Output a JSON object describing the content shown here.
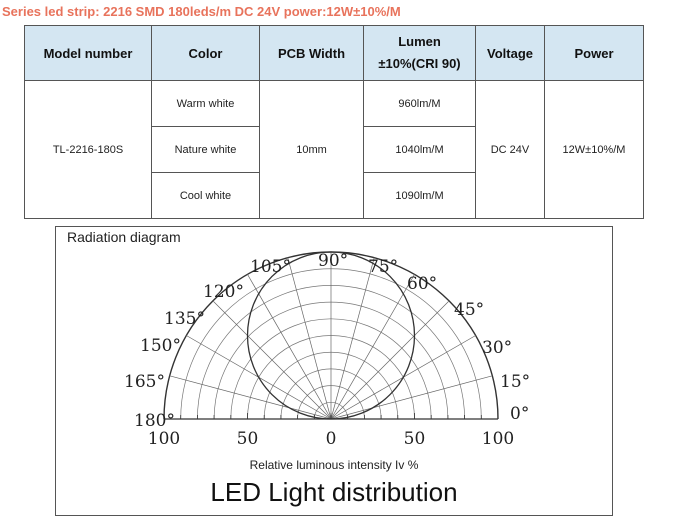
{
  "series_title": "Series led strip: 2216 SMD 180leds/m DC 24V power:12W±10%/M",
  "colors": {
    "title": "#e8735c",
    "header_bg": "#d4e6f2",
    "border": "#555555"
  },
  "table": {
    "headers": {
      "model": "Model number",
      "color": "Color",
      "pcb": "PCB Width",
      "lumen_line1": "Lumen",
      "lumen_line2": "±10%(CRI 90)",
      "voltage": "Voltage",
      "power": "Power"
    },
    "model_number": "TL-2216-180S",
    "pcb_width": "10mm",
    "voltage": "DC 24V",
    "power": "12W±10%/M",
    "rows": [
      {
        "color": "Warm white",
        "lumen": "960lm/M"
      },
      {
        "color": "Nature white",
        "lumen": "1040lm/M"
      },
      {
        "color": "Cool white",
        "lumen": "1090lm/M"
      }
    ]
  },
  "diagram": {
    "title": "Radiation diagram",
    "angle_labels": [
      "180°",
      "165°",
      "150°",
      "135°",
      "120°",
      "105°",
      "90°",
      "75°",
      "60°",
      "45°",
      "30°",
      "15°",
      "0°"
    ],
    "scale_labels": [
      "100",
      "50",
      "0",
      "50",
      "100"
    ],
    "axis_caption": "Relative luminous intensity Iv %",
    "caption": "LED Light distribution"
  }
}
